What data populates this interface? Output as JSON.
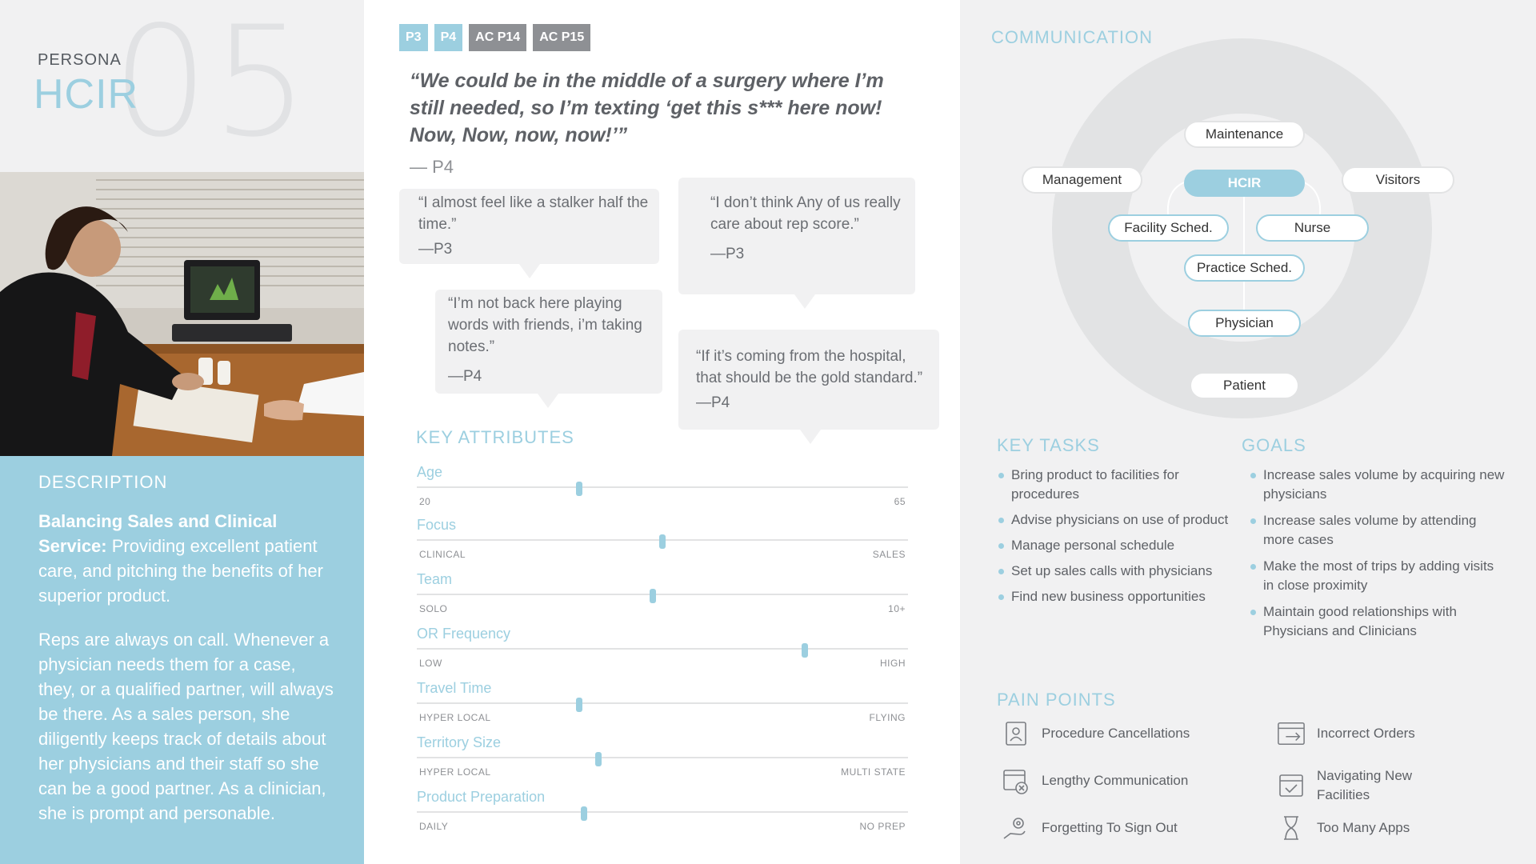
{
  "persona": {
    "label": "PERSONA",
    "name": "HCIR",
    "number": "05"
  },
  "description": {
    "heading": "DESCRIPTION",
    "lead_bold": "Balancing Sales and Clinical Service:",
    "lead_rest": " Providing excellent patient care, and pitching the benefits of her superior product.",
    "body": "Reps are always on call. Whenever a physician needs them for a case, they, or a qualified partner, will always be there. As a sales person, she diligently keeps track of details about her physicians and their staff so she can be a good partner. As a clinician, she is prompt and personable."
  },
  "tags": [
    "P3",
    "P4",
    "AC P14",
    "AC P15"
  ],
  "main_quote": {
    "text": "“We could be in the middle of a surgery where I’m still needed, so I’m texting ‘get this s*** here now! Now, Now, now, now!’”",
    "attribution": "— P4"
  },
  "bubbles": [
    {
      "text": "“I almost feel like a stalker half the time.”",
      "attr": "—P3"
    },
    {
      "text": "“I don’t think Any of us really care about rep score.”",
      "attr": "—P3"
    },
    {
      "text": "“I’m not back here playing words with friends, i’m taking notes.”",
      "attr": "—P4"
    },
    {
      "text": "“If it’s coming from the hospital, that should be the gold standard.”",
      "attr": "—P4"
    }
  ],
  "key_attributes": {
    "title": "KEY ATTRIBUTES",
    "items": [
      {
        "name": "Age",
        "low": "20",
        "high": "65",
        "level": 0.33
      },
      {
        "name": "Focus",
        "low": "CLINICAL",
        "high": "SALES",
        "level": 0.5
      },
      {
        "name": "Team",
        "low": "SOLO",
        "high": "10+",
        "level": 0.48
      },
      {
        "name": "OR Frequency",
        "low": "LOW",
        "high": "HIGH",
        "level": 0.79
      },
      {
        "name": "Travel Time",
        "low": "HYPER LOCAL",
        "high": "FLYING",
        "level": 0.33
      },
      {
        "name": "Territory Size",
        "low": "HYPER LOCAL",
        "high": "MULTI STATE",
        "level": 0.37
      },
      {
        "name": "Product Preparation",
        "low": "DAILY",
        "high": "NO PREP",
        "level": 0.34
      }
    ]
  },
  "communication": {
    "title": "COMMUNICATION",
    "nodes": {
      "maintenance": "Maintenance",
      "management": "Management",
      "hcir": "HCIR",
      "visitors": "Visitors",
      "facility": "Facility Sched.",
      "nurse": "Nurse",
      "practice": "Practice Sched.",
      "physician": "Physician",
      "patient": "Patient"
    }
  },
  "key_tasks": {
    "title": "KEY TASKS",
    "items": [
      "Bring product to facilities for procedures",
      "Advise physicians on use of product",
      "Manage personal schedule",
      "Set up sales calls with physicians",
      "Find new business opportunities"
    ]
  },
  "goals": {
    "title": "GOALS",
    "items": [
      "Increase sales volume by acquiring new physicians",
      "Increase sales volume by attending more cases",
      "Make the most of trips by adding visits in close proximity",
      "Maintain good relationships with Physicians and Clinicians"
    ]
  },
  "pain_points": {
    "title": "PAIN POINTS",
    "items": [
      {
        "label": "Procedure Cancellations",
        "icon": "badge-icon"
      },
      {
        "label": "Incorrect Orders",
        "icon": "window-arrow-icon"
      },
      {
        "label": "Lengthy Communication",
        "icon": "calendar-x-icon"
      },
      {
        "label": "Navigating New Facilities",
        "icon": "calendar-check-icon"
      },
      {
        "label": "Forgetting To Sign Out",
        "icon": "hand-gear-icon"
      },
      {
        "label": "Too Many Apps",
        "icon": "hourglass-icon"
      }
    ]
  },
  "colors": {
    "accent": "#9ccfe0",
    "panel": "#f1f1f2",
    "tag_gray": "#8e9094",
    "text": "#5e6166"
  }
}
